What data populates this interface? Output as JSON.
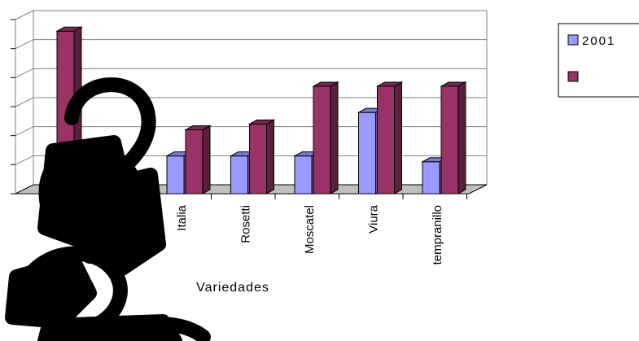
{
  "chart_data": {
    "type": "bar",
    "categories": [
      "Italia",
      "Rosetti",
      "Moscatel",
      "Viura",
      "tempranillo"
    ],
    "series": [
      {
        "name": "2001",
        "values": [
          1.3,
          1.3,
          1.3,
          2.8,
          1.1
        ],
        "color": "#9999ff"
      },
      {
        "name": "",
        "values": [
          2.2,
          2.4,
          3.7,
          3.7,
          3.7
        ],
        "color": "#993366"
      }
    ],
    "hidden_category_values": {
      "series_2": 5.6
    },
    "xlabel": "Variedades",
    "ylabel": "",
    "ylim": [
      0,
      6
    ],
    "grid": true,
    "legend": "top-right"
  },
  "colors": {
    "floor": "#c0c0c0",
    "grid": "#808080",
    "obscuring_shape": "#000000"
  }
}
